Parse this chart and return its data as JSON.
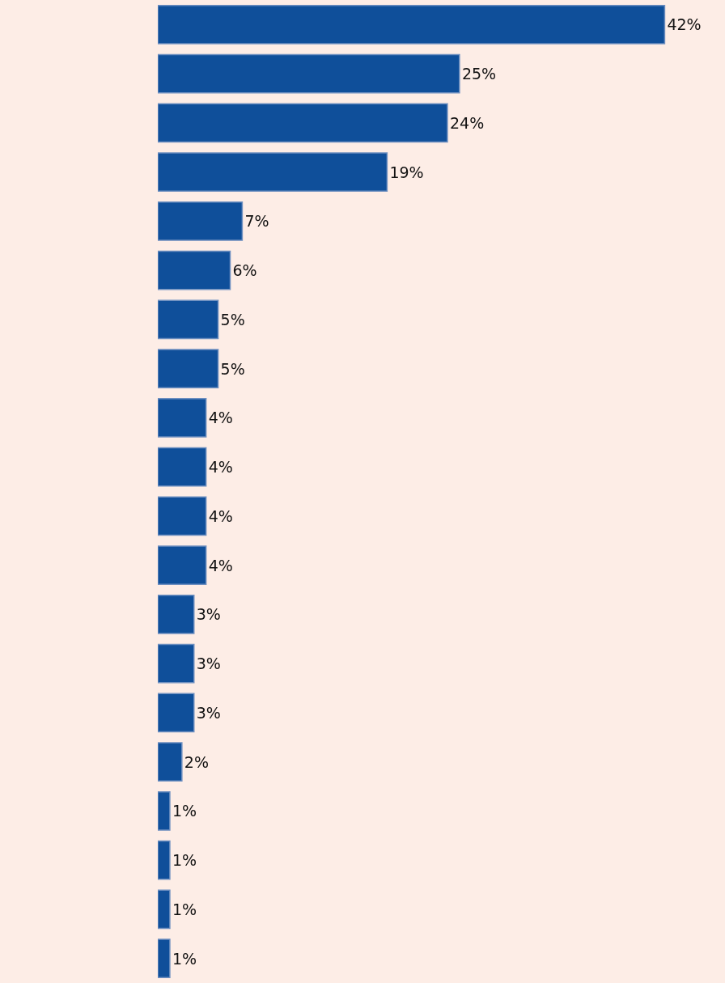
{
  "chart_data": {
    "type": "bar",
    "orientation": "horizontal",
    "categories": [
      null,
      null,
      null,
      null,
      null,
      null,
      null,
      null,
      null,
      null,
      null,
      null,
      null,
      null,
      null,
      null,
      null,
      null,
      null,
      null
    ],
    "values": [
      42,
      25,
      24,
      19,
      7,
      6,
      5,
      5,
      4,
      4,
      4,
      4,
      3,
      3,
      3,
      2,
      1,
      1,
      1,
      1
    ],
    "value_labels": [
      "42%",
      "25%",
      "24%",
      "19%",
      "7%",
      "6%",
      "5%",
      "5%",
      "4%",
      "4%",
      "4%",
      "4%",
      "3%",
      "3%",
      "3%",
      "2%",
      "1%",
      "1%",
      "1%",
      "1%"
    ],
    "color": "#0f4f9a",
    "xlim": [
      0,
      47
    ],
    "tick_labels": false,
    "grid": false,
    "legend": false
  }
}
